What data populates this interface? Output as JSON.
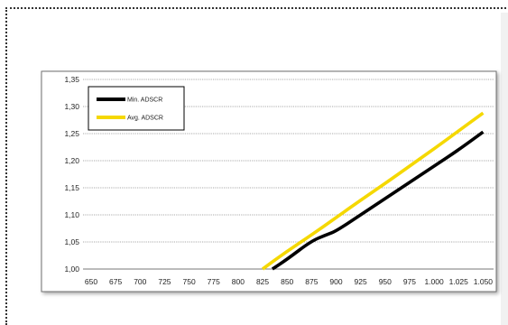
{
  "chart_data": {
    "type": "line",
    "title": "",
    "xlabel": "",
    "ylabel": "",
    "x_tick_labels": [
      "650",
      "675",
      "700",
      "725",
      "750",
      "775",
      "800",
      "825",
      "850",
      "875",
      "900",
      "925",
      "950",
      "975",
      "1.000",
      "1.025",
      "1.050"
    ],
    "x_tick_values": [
      650,
      675,
      700,
      725,
      750,
      775,
      800,
      825,
      850,
      875,
      900,
      925,
      950,
      975,
      1000,
      1025,
      1050
    ],
    "y_tick_labels": [
      "1,00",
      "1,05",
      "1,10",
      "1,15",
      "1,20",
      "1,25",
      "1,30",
      "1,35"
    ],
    "y_tick_values": [
      1.0,
      1.05,
      1.1,
      1.15,
      1.2,
      1.25,
      1.3,
      1.35
    ],
    "xlim": [
      650,
      1050
    ],
    "ylim": [
      1.0,
      1.35
    ],
    "grid": "horizontal",
    "legend_position": "top-left",
    "series": [
      {
        "name": "Min. ADSCR",
        "color": "#000000",
        "x": [
          835,
          850,
          875,
          890,
          900,
          925,
          950,
          975,
          1000,
          1025,
          1050
        ],
        "y": [
          1.0,
          1.018,
          1.052,
          1.063,
          1.07,
          1.1,
          1.13,
          1.16,
          1.19,
          1.22,
          1.253
        ]
      },
      {
        "name": "Avg. ADSCR",
        "color": "#f5d800",
        "x": [
          825,
          850,
          875,
          900,
          925,
          950,
          975,
          1000,
          1025,
          1050
        ],
        "y": [
          1.0,
          1.033,
          1.063,
          1.095,
          1.127,
          1.158,
          1.19,
          1.222,
          1.255,
          1.288
        ]
      }
    ]
  }
}
